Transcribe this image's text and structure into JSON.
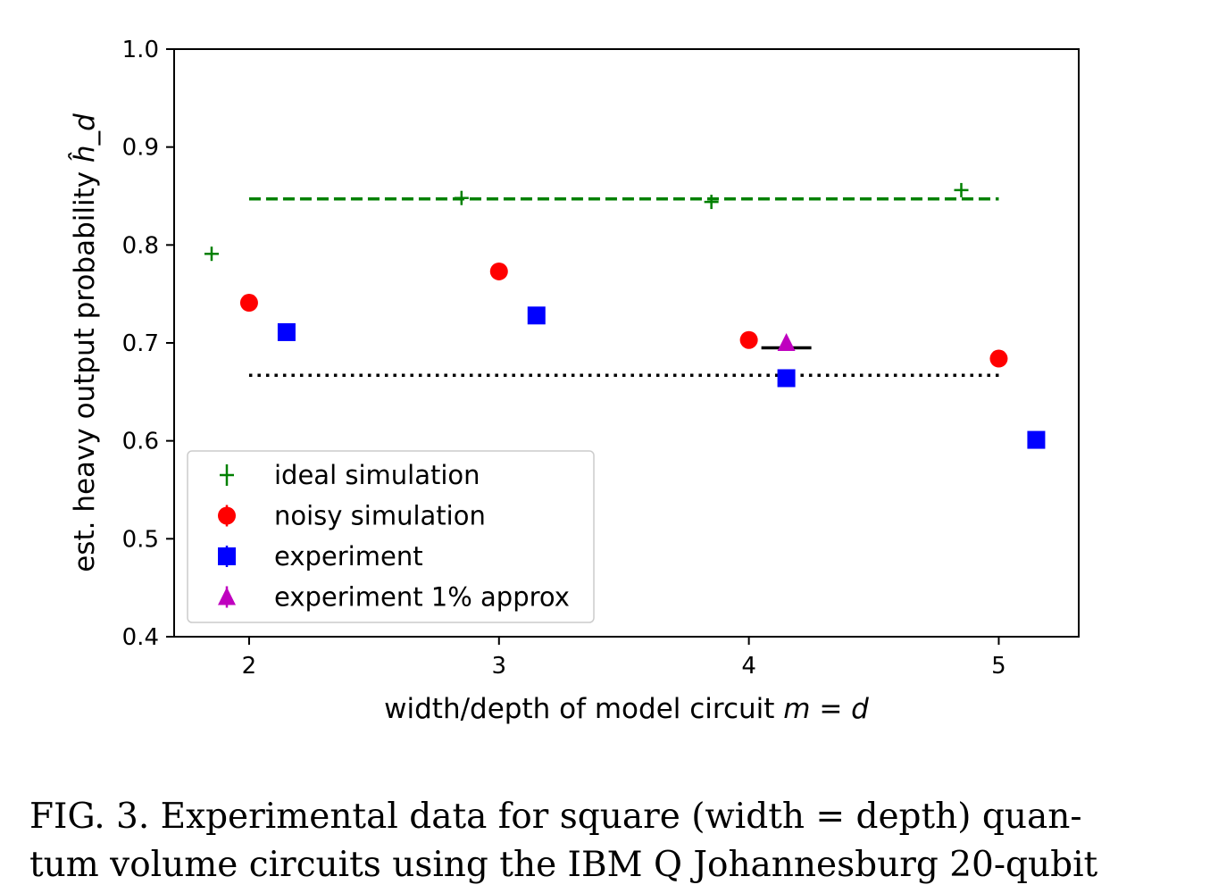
{
  "chart_data": {
    "type": "scatter",
    "xlabel": "width/depth of model circuit",
    "xlabel_math": "m = d",
    "ylabel": "est. heavy output probability",
    "ylabel_math": "ĥ_d",
    "xlim": [
      1.7,
      5.32
    ],
    "ylim": [
      0.4,
      1.0
    ],
    "x_ticks": [
      2,
      3,
      4,
      5
    ],
    "y_ticks": [
      "0.4",
      "0.5",
      "0.6",
      "0.7",
      "0.8",
      "0.9",
      "1.0"
    ],
    "grid": false,
    "legend_position": "lower-left",
    "series": [
      {
        "name": "ideal simulation",
        "marker": "plus",
        "color": "#008000",
        "points": [
          {
            "x": 1.85,
            "y": 0.791
          },
          {
            "x": 2.85,
            "y": 0.848
          },
          {
            "x": 3.85,
            "y": 0.844
          },
          {
            "x": 4.85,
            "y": 0.856
          }
        ]
      },
      {
        "name": "noisy simulation",
        "marker": "circle",
        "color": "#ff0000",
        "points": [
          {
            "x": 2.0,
            "y": 0.741
          },
          {
            "x": 3.0,
            "y": 0.773
          },
          {
            "x": 4.0,
            "y": 0.703
          },
          {
            "x": 5.0,
            "y": 0.684
          }
        ]
      },
      {
        "name": "experiment",
        "marker": "square",
        "color": "#0000ff",
        "points": [
          {
            "x": 2.15,
            "y": 0.711
          },
          {
            "x": 3.15,
            "y": 0.728
          },
          {
            "x": 4.15,
            "y": 0.664
          },
          {
            "x": 5.15,
            "y": 0.601
          }
        ]
      },
      {
        "name": "experiment 1% approx",
        "marker": "triangle",
        "color": "#bf00bf",
        "points": [
          {
            "x": 4.15,
            "y": 0.7
          }
        ]
      }
    ],
    "reference_lines": [
      {
        "style": "dashed",
        "color": "#008000",
        "y": 0.847,
        "x_range": [
          2.0,
          5.0
        ]
      },
      {
        "style": "dotted",
        "color": "#000000",
        "y": 0.667,
        "x_range": [
          2.0,
          5.0
        ]
      },
      {
        "style": "solid",
        "color": "#000000",
        "y": 0.695,
        "x_range": [
          4.05,
          4.25
        ]
      }
    ]
  },
  "caption": {
    "line1": "FIG. 3. Experimental data for square (width = depth) quan-",
    "line2": "tum volume circuits using the IBM Q Johannesburg 20-qubit"
  }
}
